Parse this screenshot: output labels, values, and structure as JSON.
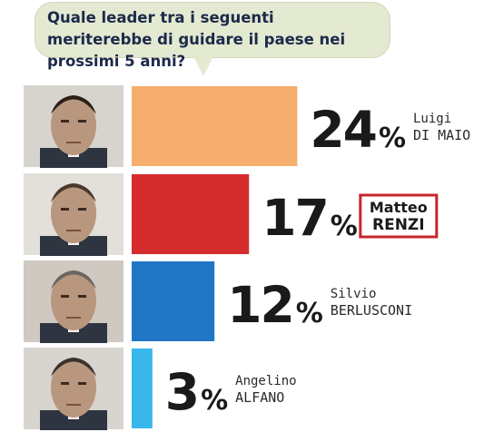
{
  "question": "Quale leader tra i seguenti meriterebbe di guidare il paese nei prossimi 5 anni?",
  "chart_data": {
    "type": "bar",
    "title": "Quale leader tra i seguenti meriterebbe di guidare il paese nei prossimi 5 anni?",
    "unit": "%",
    "series": [
      {
        "values": [
          24,
          17,
          12,
          3
        ]
      }
    ],
    "categories": [
      "Luigi DI MAIO",
      "Matteo RENZI",
      "Silvio BERLUSCONI",
      "Angelino ALFANO"
    ],
    "bars": [
      {
        "first_name": "Luigi",
        "last_name": "DI MAIO",
        "value": 24,
        "value_label": "24",
        "color": "#f5ae6e",
        "highlighted": false
      },
      {
        "first_name": "Matteo",
        "last_name": "RENZI",
        "value": 17,
        "value_label": "17",
        "color": "#d52c2e",
        "highlighted": true,
        "highlight_color": "#c8262b"
      },
      {
        "first_name": "Silvio",
        "last_name": "BERLUSCONI",
        "value": 12,
        "value_label": "12",
        "color": "#1f77c4",
        "highlighted": false
      },
      {
        "first_name": "Angelino",
        "last_name": "ALFANO",
        "value": 3,
        "value_label": "3",
        "color": "#38b7ea",
        "highlighted": false
      }
    ]
  }
}
